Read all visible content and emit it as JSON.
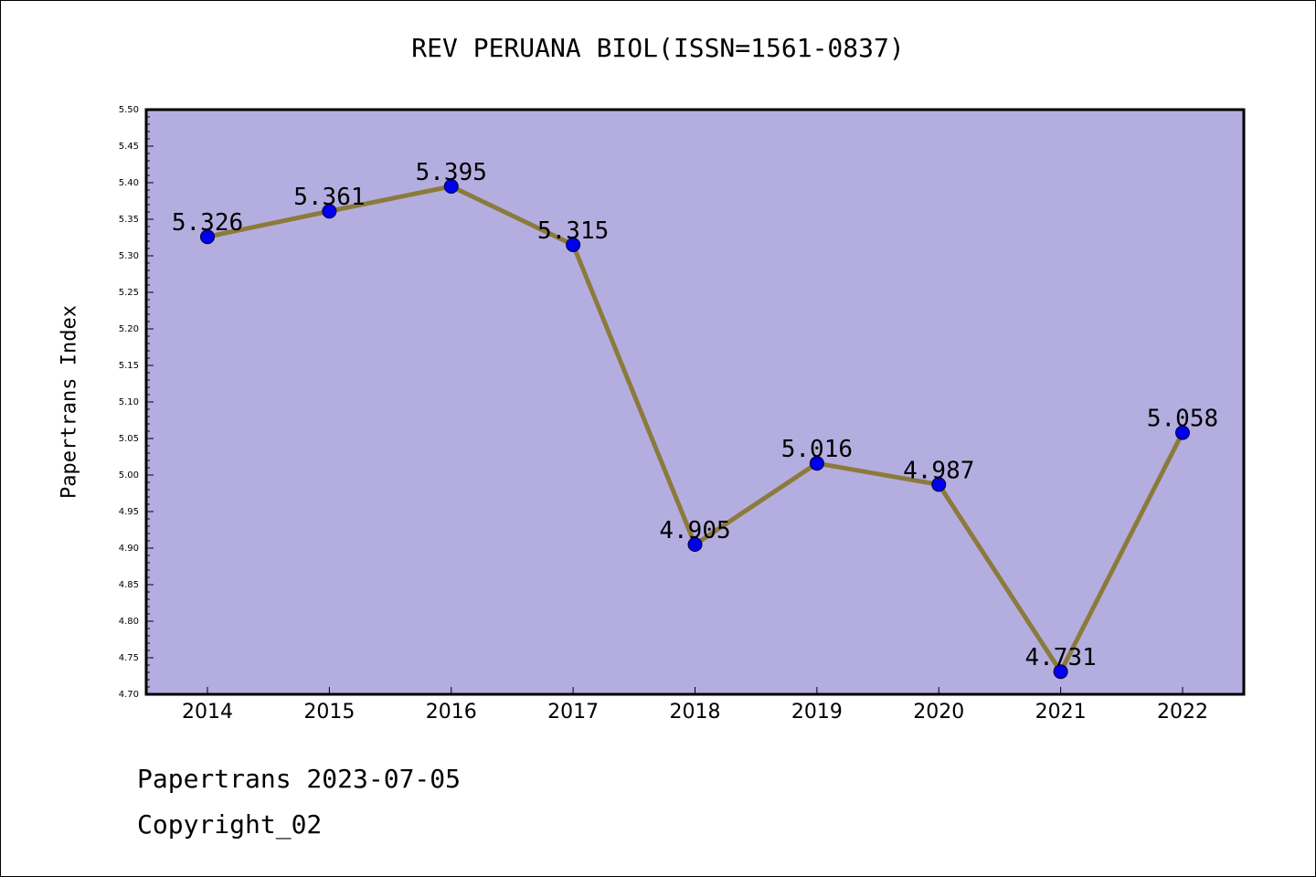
{
  "title": "REV PERUANA BIOL(ISSN=1561-0837)",
  "footer": {
    "line1": "Papertrans 2023-07-05",
    "line2": "Copyright_02"
  },
  "colors": {
    "plot_bg": "#b4aee0",
    "line": "#8c7a3c",
    "marker": "#0000ee",
    "axes": "#000000"
  },
  "chart_data": {
    "type": "line",
    "title": "REV PERUANA BIOL(ISSN=1561-0837)",
    "xlabel": "",
    "ylabel": "Papertrans Index",
    "categories": [
      "2014",
      "2015",
      "2016",
      "2017",
      "2018",
      "2019",
      "2020",
      "2021",
      "2022"
    ],
    "values": [
      5.326,
      5.361,
      5.395,
      5.315,
      4.905,
      5.016,
      4.987,
      4.731,
      5.058
    ],
    "data_labels": [
      "5.326",
      "5.361",
      "5.395",
      "5.315",
      "4.905",
      "5.016",
      "4.987",
      "4.731",
      "5.058"
    ],
    "ylim": [
      4.7,
      5.5
    ],
    "yticks": [
      "4.70",
      "4.75",
      "4.80",
      "4.85",
      "4.90",
      "4.95",
      "5.00",
      "5.05",
      "5.10",
      "5.15",
      "5.20",
      "5.25",
      "5.30",
      "5.35",
      "5.40",
      "5.45",
      "5.50"
    ],
    "grid": false,
    "legend": "none"
  }
}
